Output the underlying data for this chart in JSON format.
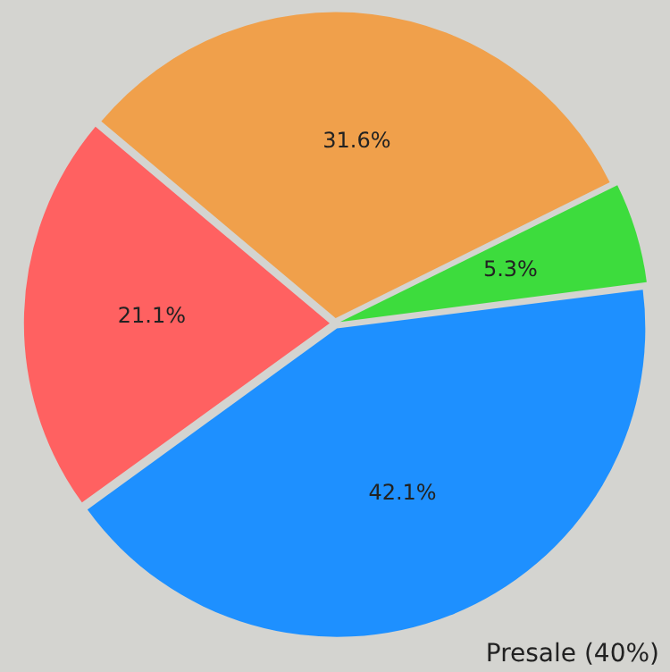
{
  "chart_data": {
    "type": "pie",
    "categories": [
      null,
      null,
      null,
      null
    ],
    "values": [
      31.6,
      5.3,
      42.1,
      21.1
    ],
    "colors": [
      "#f0a04b",
      "#3ddc3d",
      "#1e90ff",
      "#ff6161"
    ],
    "value_labels": [
      "31.6%",
      "5.3%",
      "42.1%",
      "21.1%"
    ],
    "annotations": [
      "Presale (40%)"
    ]
  }
}
